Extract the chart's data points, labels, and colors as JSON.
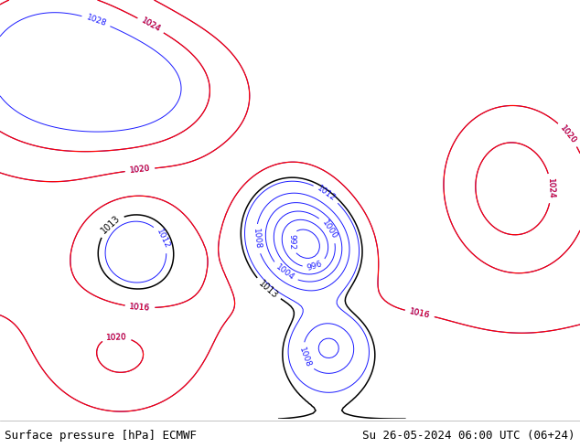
{
  "title_left": "Surface pressure [hPa] ECMWF",
  "title_right": "Su 26-05-2024 06:00 UTC (06+24)",
  "footer_fontsize": 9,
  "figsize": [
    6.34,
    4.9
  ],
  "dpi": 100,
  "extent": [
    40,
    160,
    0,
    70
  ],
  "ocean_color": "#b0d0e8",
  "land_color_low": "#c8d8a0",
  "land_color_high": "#d4b882",
  "blue_color": "#1a1aff",
  "red_color": "#ff0000",
  "black_color": "#000000",
  "contour_levels": [
    992,
    996,
    1000,
    1004,
    1008,
    1012,
    1016,
    1020,
    1024,
    1028
  ],
  "red_levels": [
    1016,
    1020,
    1024
  ],
  "black_levels": [
    1013
  ],
  "label_size": 6.5
}
